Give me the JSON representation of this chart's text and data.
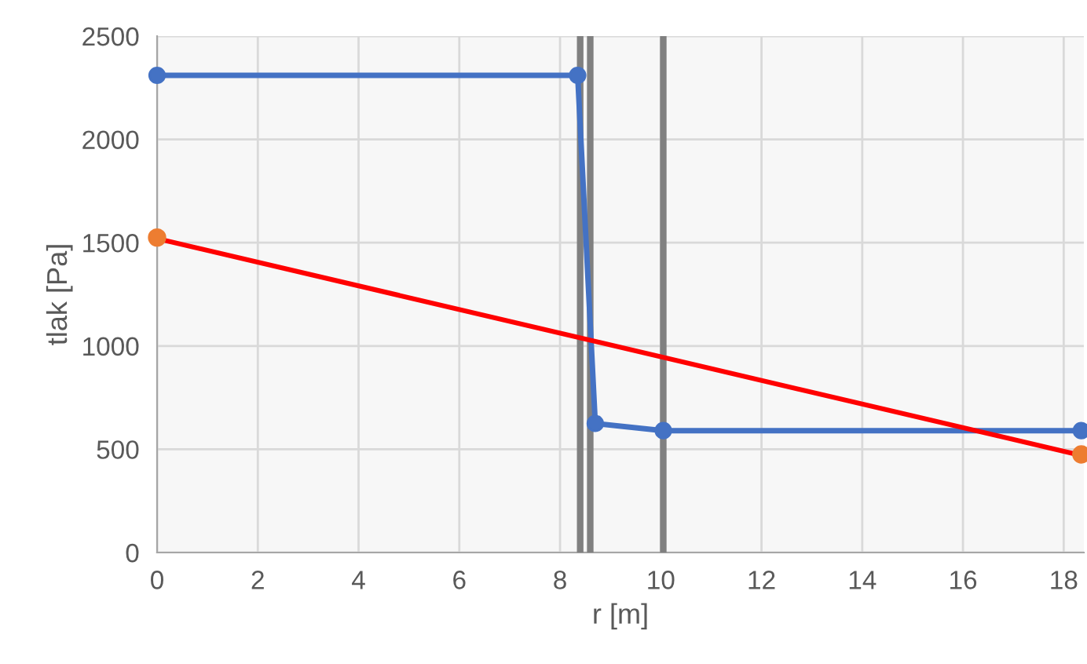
{
  "chart_data": {
    "type": "line",
    "xlabel": "r [m]",
    "ylabel": "tlak [Pa]",
    "xlim": [
      0,
      18.4
    ],
    "xticks": [
      0,
      2,
      4,
      6,
      8,
      10,
      12,
      14,
      16,
      18
    ],
    "ylim": [
      0,
      2500
    ],
    "yticks": [
      0,
      500,
      1000,
      1500,
      2000,
      2500
    ],
    "grid": true,
    "marker": "circle",
    "series": [
      {
        "color": "#4472c4",
        "x": [
          0,
          8.35,
          8.7,
          10.05,
          18.35
        ],
        "values": [
          2310,
          2310,
          625,
          590,
          590
        ]
      },
      {
        "type": "line",
        "color": "#ff0000",
        "marker": "none",
        "x": [
          0,
          18.35
        ],
        "values": [
          1520,
          470
        ]
      },
      {
        "type": "scatter",
        "color": "#ed7d31",
        "x": [
          0,
          18.35
        ],
        "values": [
          1525,
          475
        ]
      }
    ],
    "ref_lines": [
      {
        "axis": "x",
        "value": 8.4,
        "color": "#808080"
      },
      {
        "axis": "x",
        "value": 8.6,
        "color": "#808080"
      },
      {
        "axis": "x",
        "value": 10.05,
        "color": "#808080"
      }
    ]
  }
}
